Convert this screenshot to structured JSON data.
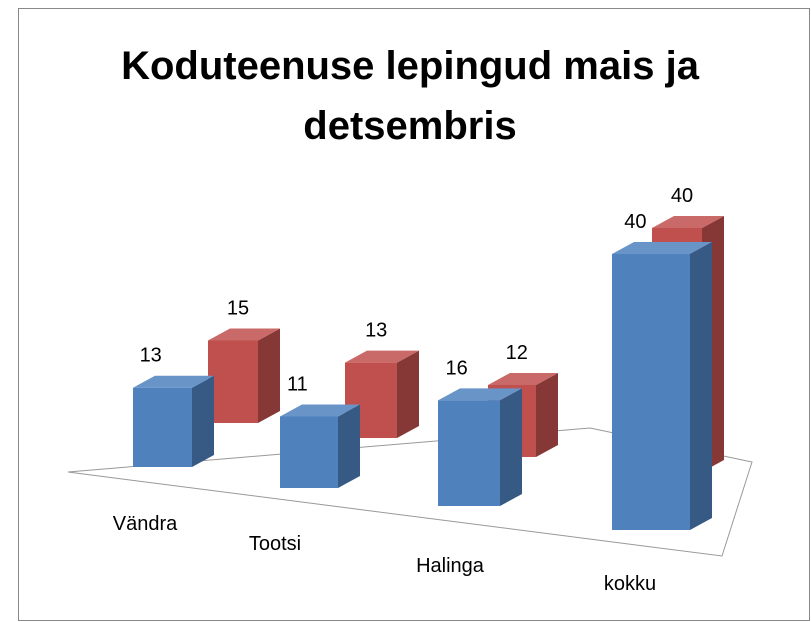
{
  "chart_data": {
    "type": "bar3d",
    "title": "Koduteenuse lepingud mais ja detsembris",
    "categories": [
      "Vändra",
      "Tootsi",
      "Halinga",
      "kokku"
    ],
    "series": [
      {
        "color": "#4f81bd",
        "values": [
          13,
          11,
          16,
          40
        ]
      },
      {
        "color": "#c0504d",
        "values": [
          15,
          13,
          12,
          40
        ]
      }
    ]
  }
}
